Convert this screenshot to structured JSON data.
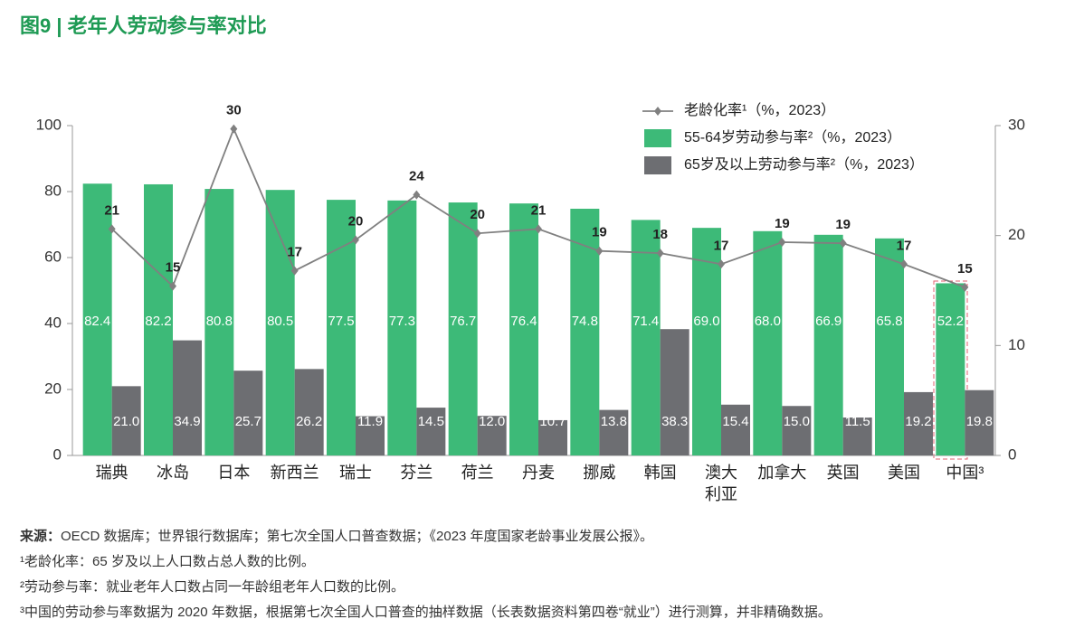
{
  "chart_data": {
    "type": "bar+line",
    "title": "图9 | 老年人劳动参与率对比",
    "categories": [
      "瑞典",
      "冰岛",
      "日本",
      "新西兰",
      "瑞士",
      "芬兰",
      "荷兰",
      "丹麦",
      "挪威",
      "韩国",
      "澳大利亚",
      "加拿大",
      "英国",
      "美国",
      "中国³"
    ],
    "series": [
      {
        "name": "老龄化率¹（%，2023）",
        "type": "line",
        "axis": "y2",
        "color": "#808080",
        "values": [
          20.6,
          15.4,
          29.7,
          16.8,
          19.6,
          23.7,
          20.2,
          20.6,
          18.6,
          18.4,
          17.4,
          19.4,
          19.3,
          17.4,
          15.3
        ],
        "value_labels": [
          "21",
          "15",
          "30",
          "17",
          "20",
          "24",
          "20",
          "21",
          "19",
          "18",
          "17",
          "19",
          "19",
          "17",
          "15"
        ]
      },
      {
        "name": "55-64岁劳动参与率²（%，2023）",
        "type": "bar",
        "color": "#3dba78",
        "values": [
          82.4,
          82.2,
          80.8,
          80.5,
          77.5,
          77.3,
          76.7,
          76.4,
          74.8,
          71.4,
          69.0,
          68.0,
          66.9,
          65.8,
          52.2
        ],
        "value_labels": [
          "82.4",
          "82.2",
          "80.8",
          "80.5",
          "77.5",
          "77.3",
          "76.7",
          "76.4",
          "74.8",
          "71.4",
          "69.0",
          "68.0",
          "66.9",
          "65.8",
          "52.2"
        ]
      },
      {
        "name": "65岁及以上劳动参与率²（%，2023）",
        "type": "bar",
        "color": "#6d6e72",
        "values": [
          21.0,
          34.9,
          25.7,
          26.2,
          11.9,
          14.5,
          12.0,
          10.7,
          13.8,
          38.3,
          15.4,
          15.0,
          11.5,
          19.2,
          19.8
        ],
        "value_labels": [
          "21.0",
          "34.9",
          "25.7",
          "26.2",
          "11.9",
          "14.5",
          "12.0",
          "10.7",
          "13.8",
          "38.3",
          "15.4",
          "15.0",
          "11.5",
          "19.2",
          "19.8"
        ]
      }
    ],
    "ylim": [
      0,
      100
    ],
    "yticks": [
      0,
      20,
      40,
      60,
      80,
      100
    ],
    "y2lim": [
      0,
      30
    ],
    "y2ticks": [
      0,
      10,
      20,
      30
    ]
  },
  "source": {
    "label": "来源：",
    "text": "OECD 数据库；世界银行数据库；第七次全国人口普查数据；《2023 年度国家老龄事业发展公报》。"
  },
  "footnotes": [
    "¹老龄化率：65 岁及以上人口数占总人数的比例。",
    "²劳动参与率：就业老年人口数占同一年龄组老年人口数的比例。",
    "³中国的劳动参与率数据为 2020 年数据，根据第七次全国人口普查的抽样数据（长表数据资料第四卷“就业”）进行测算，并非精确数据。"
  ]
}
